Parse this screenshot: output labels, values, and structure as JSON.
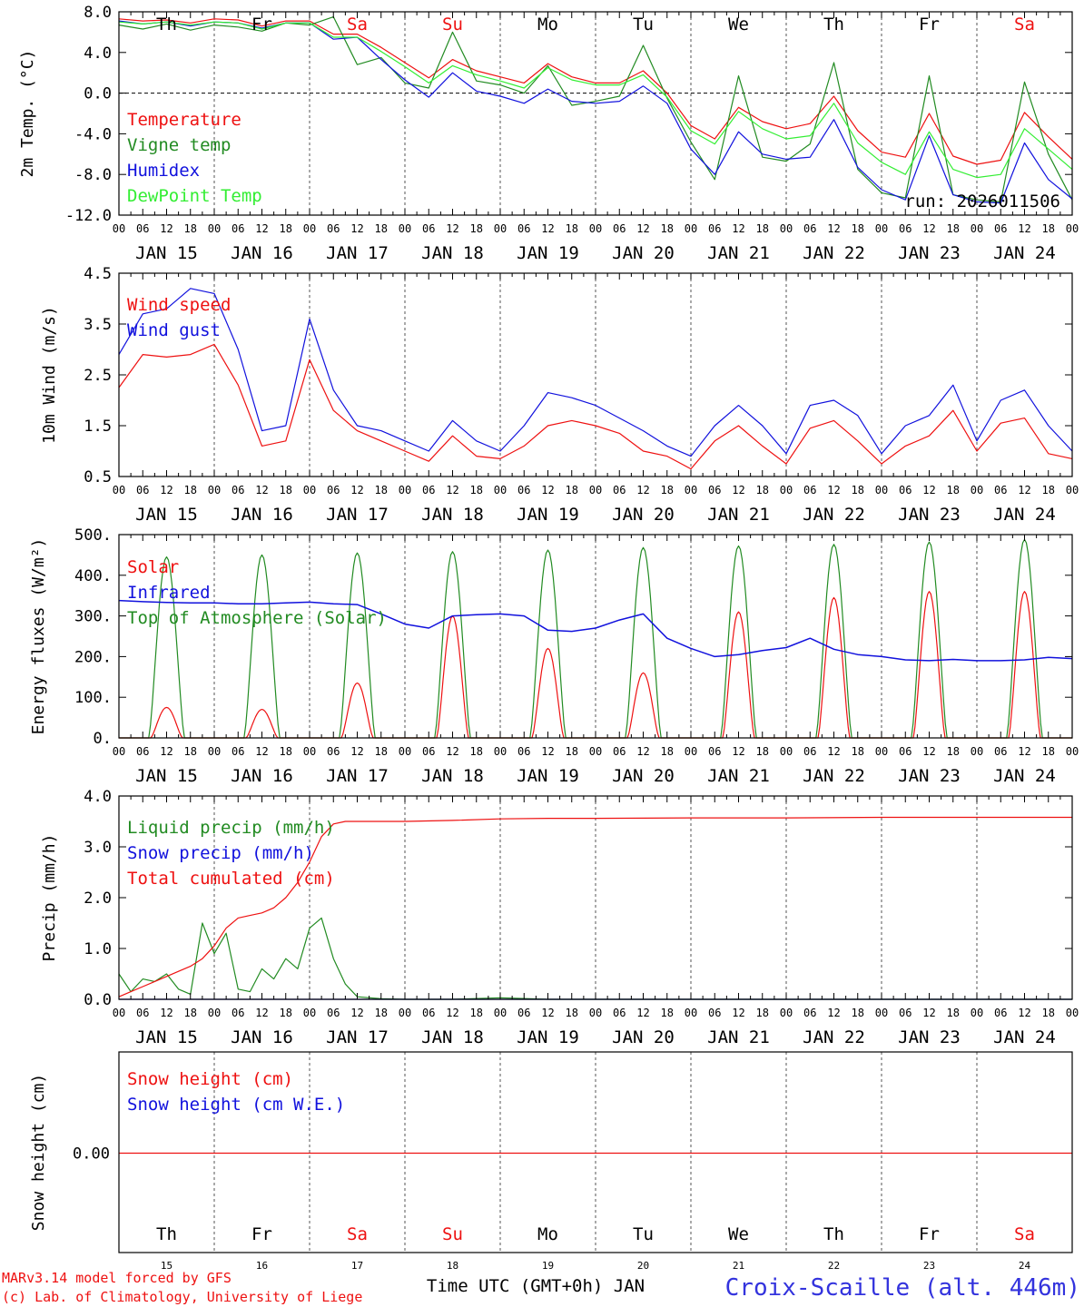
{
  "days": [
    {
      "abbr": "Th",
      "date": "JAN 15",
      "num": "15",
      "weekend": false
    },
    {
      "abbr": "Fr",
      "date": "JAN 16",
      "num": "16",
      "weekend": false
    },
    {
      "abbr": "Sa",
      "date": "JAN 17",
      "num": "17",
      "weekend": true
    },
    {
      "abbr": "Su",
      "date": "JAN 18",
      "num": "18",
      "weekend": true
    },
    {
      "abbr": "Mo",
      "date": "JAN 19",
      "num": "19",
      "weekend": false
    },
    {
      "abbr": "Tu",
      "date": "JAN 20",
      "num": "20",
      "weekend": false
    },
    {
      "abbr": "We",
      "date": "JAN 21",
      "num": "21",
      "weekend": false
    },
    {
      "abbr": "Th",
      "date": "JAN 22",
      "num": "22",
      "weekend": false
    },
    {
      "abbr": "Fr",
      "date": "JAN 23",
      "num": "23",
      "weekend": false
    },
    {
      "abbr": "Sa",
      "date": "JAN 24",
      "num": "24",
      "weekend": true
    }
  ],
  "hour_labels": [
    "00",
    "06",
    "12",
    "18"
  ],
  "final_hour_label": "00",
  "colors": {
    "red": "#ee1111",
    "darkgreen": "#228b22",
    "blue": "#1111dd",
    "lightgreen": "#33ee33",
    "weekday": "#000000",
    "weekend": "#ee1111",
    "station": "#3333dd"
  },
  "run_label": "run: 2026011506",
  "footer": {
    "credit_line1": "MARv3.14 model forced by GFS",
    "credit_line2": "(c) Lab. of Climatology, University of Liege",
    "xlabel": "Time UTC (GMT+0h) JAN",
    "station": "Croix-Scaille (alt. 446m)"
  },
  "chart_data": [
    {
      "type": "line",
      "ylabel": "2m Temp. (°C)",
      "ylim": [
        -12,
        8
      ],
      "yticks": [
        "8.0",
        "4.0",
        "0.0",
        "-4.0",
        "-8.0",
        "-12.0"
      ],
      "x_hours": [
        0,
        6,
        12,
        18,
        24,
        30,
        36,
        42,
        48,
        54,
        60,
        66,
        72,
        78,
        84,
        90,
        96,
        102,
        108,
        114,
        120,
        126,
        132,
        138,
        144,
        150,
        156,
        162,
        168,
        174,
        180,
        186,
        192,
        198,
        204,
        210,
        216,
        222,
        228,
        234,
        240
      ],
      "series": [
        {
          "name": "Temperature",
          "color": "red",
          "values": [
            7.3,
            7.1,
            7.2,
            6.9,
            7.3,
            7.2,
            6.6,
            7.1,
            7.1,
            5.8,
            5.8,
            4.5,
            3.0,
            1.5,
            3.3,
            2.2,
            1.6,
            1.0,
            2.9,
            1.6,
            1.0,
            1.0,
            2.2,
            0.0,
            -3.2,
            -4.5,
            -1.4,
            -2.8,
            -3.5,
            -3.0,
            -0.3,
            -3.7,
            -5.8,
            -6.3,
            -2.0,
            -6.2,
            -7.0,
            -6.6,
            -1.9,
            -4.3,
            -6.5
          ]
        },
        {
          "name": "Vigne temp",
          "color": "darkgreen",
          "values": [
            6.7,
            6.3,
            6.8,
            6.2,
            6.7,
            6.5,
            6.1,
            6.9,
            6.7,
            7.5,
            2.8,
            3.5,
            1.0,
            0.5,
            6.0,
            1.2,
            0.8,
            0.0,
            2.7,
            -1.2,
            -0.8,
            -0.3,
            4.7,
            -0.5,
            -4.8,
            -8.5,
            1.7,
            -6.3,
            -6.7,
            -5.0,
            3.0,
            -7.5,
            -9.8,
            -10.3,
            1.7,
            -10.0,
            -10.5,
            -10.7,
            1.1,
            -6.0,
            -10.5
          ]
        },
        {
          "name": "Humidex",
          "color": "blue",
          "values": [
            7.1,
            6.8,
            7.0,
            6.6,
            7.0,
            6.9,
            6.4,
            6.9,
            6.9,
            5.3,
            5.5,
            3.3,
            1.3,
            -0.4,
            2.0,
            0.2,
            -0.3,
            -1.0,
            0.4,
            -0.8,
            -1.0,
            -0.8,
            0.7,
            -1.0,
            -5.5,
            -8.0,
            -3.8,
            -6.0,
            -6.5,
            -6.3,
            -2.6,
            -7.3,
            -9.5,
            -10.5,
            -4.2,
            -10.0,
            -10.7,
            -10.8,
            -4.9,
            -8.5,
            -10.4
          ]
        },
        {
          "name": "DewPoint Temp",
          "color": "lightgreen",
          "values": [
            7.0,
            6.8,
            7.0,
            6.7,
            7.0,
            6.9,
            6.3,
            6.9,
            6.9,
            5.5,
            5.5,
            4.1,
            2.6,
            1.0,
            2.7,
            1.8,
            1.2,
            0.5,
            2.5,
            1.3,
            0.8,
            0.8,
            1.8,
            -0.4,
            -3.7,
            -5.0,
            -1.8,
            -3.5,
            -4.5,
            -4.2,
            -1.0,
            -4.9,
            -6.8,
            -8.0,
            -3.8,
            -7.5,
            -8.3,
            -8.0,
            -3.5,
            -5.5,
            -7.5
          ]
        }
      ]
    },
    {
      "type": "line",
      "ylabel": "10m Wind (m/s)",
      "ylim": [
        0.5,
        4.5
      ],
      "yticks": [
        "4.5",
        "3.5",
        "2.5",
        "1.5",
        "0.5"
      ],
      "x_hours": [
        0,
        6,
        12,
        18,
        24,
        30,
        36,
        42,
        48,
        54,
        60,
        66,
        72,
        78,
        84,
        90,
        96,
        102,
        108,
        114,
        120,
        126,
        132,
        138,
        144,
        150,
        156,
        162,
        168,
        174,
        180,
        186,
        192,
        198,
        204,
        210,
        216,
        222,
        228,
        234,
        240
      ],
      "series": [
        {
          "name": "Wind speed",
          "color": "red",
          "values": [
            2.25,
            2.9,
            2.85,
            2.9,
            3.1,
            2.3,
            1.1,
            1.2,
            2.8,
            1.8,
            1.4,
            1.2,
            1.0,
            0.8,
            1.3,
            0.9,
            0.85,
            1.1,
            1.5,
            1.6,
            1.5,
            1.35,
            1.0,
            0.9,
            0.65,
            1.2,
            1.5,
            1.1,
            0.75,
            1.45,
            1.6,
            1.2,
            0.75,
            1.1,
            1.3,
            1.8,
            1.0,
            1.55,
            1.65,
            0.95,
            0.85
          ]
        },
        {
          "name": "Wind gust",
          "color": "blue",
          "values": [
            2.9,
            3.7,
            3.8,
            4.2,
            4.1,
            3.0,
            1.4,
            1.5,
            3.6,
            2.2,
            1.5,
            1.4,
            1.2,
            1.0,
            1.6,
            1.2,
            1.0,
            1.5,
            2.15,
            2.05,
            1.9,
            1.65,
            1.4,
            1.1,
            0.9,
            1.5,
            1.9,
            1.5,
            0.95,
            1.9,
            2.0,
            1.7,
            0.95,
            1.5,
            1.7,
            2.3,
            1.2,
            2.0,
            2.2,
            1.5,
            1.0
          ]
        }
      ]
    },
    {
      "type": "line",
      "ylabel": "Energy fluxes (W/m²)",
      "ylim": [
        0,
        500
      ],
      "yticks": [
        "500.",
        "400.",
        "300.",
        "200.",
        "100.",
        "0."
      ],
      "series": [
        {
          "name": "Solar",
          "color": "red",
          "peaks": [
            75,
            70,
            135,
            300,
            220,
            160,
            310,
            345,
            360,
            360
          ]
        },
        {
          "name": "Infrared",
          "color": "blue",
          "x_hours": [
            0,
            6,
            12,
            18,
            24,
            30,
            36,
            42,
            48,
            54,
            60,
            66,
            72,
            78,
            84,
            90,
            96,
            102,
            108,
            114,
            120,
            126,
            132,
            138,
            144,
            150,
            156,
            162,
            168,
            174,
            180,
            186,
            192,
            198,
            204,
            210,
            216,
            222,
            228,
            234,
            240
          ],
          "values": [
            338,
            335,
            333,
            332,
            332,
            330,
            330,
            332,
            334,
            330,
            328,
            305,
            280,
            270,
            300,
            303,
            305,
            300,
            265,
            262,
            270,
            290,
            305,
            245,
            220,
            200,
            205,
            215,
            222,
            245,
            218,
            205,
            200,
            192,
            190,
            193,
            190,
            190,
            192,
            198,
            195
          ]
        },
        {
          "name": "Top of Atmosphere (Solar)",
          "color": "darkgreen",
          "peaks": [
            445,
            450,
            455,
            458,
            462,
            468,
            472,
            476,
            482,
            488
          ]
        }
      ]
    },
    {
      "type": "line",
      "ylabel": "Precip (mm/h)",
      "ylim": [
        0,
        4
      ],
      "yticks": [
        "4.0",
        "3.0",
        "2.0",
        "1.0",
        "0.0"
      ],
      "x_hours": [
        0,
        3,
        6,
        9,
        12,
        15,
        18,
        21,
        24,
        27,
        30,
        33,
        36,
        39,
        42,
        45,
        48,
        51,
        54,
        57,
        60,
        66,
        72,
        84,
        96,
        108,
        120,
        144,
        168,
        192,
        216,
        240
      ],
      "series": [
        {
          "name": "Liquid precip (mm/h)",
          "color": "darkgreen",
          "values": [
            0.5,
            0.15,
            0.4,
            0.35,
            0.5,
            0.2,
            0.1,
            1.5,
            0.9,
            1.3,
            0.2,
            0.15,
            0.6,
            0.4,
            0.8,
            0.6,
            1.4,
            1.6,
            0.8,
            0.3,
            0.05,
            0.01,
            0.0,
            0.0,
            0.03,
            0.0,
            0.0,
            0.0,
            0.0,
            0.0,
            0.0,
            0.0
          ]
        },
        {
          "name": "Snow precip (mm/h)",
          "color": "blue",
          "values": [
            0,
            0,
            0,
            0,
            0,
            0,
            0,
            0,
            0,
            0,
            0,
            0,
            0,
            0,
            0,
            0,
            0,
            0,
            0,
            0,
            0,
            0,
            0,
            0,
            0,
            0,
            0,
            0,
            0,
            0,
            0,
            0
          ]
        },
        {
          "name": "Total cumulated (cm)",
          "color": "red",
          "values": [
            0.05,
            0.15,
            0.25,
            0.35,
            0.45,
            0.55,
            0.65,
            0.8,
            1.05,
            1.4,
            1.6,
            1.65,
            1.7,
            1.8,
            2.0,
            2.3,
            2.7,
            3.2,
            3.45,
            3.5,
            3.5,
            3.5,
            3.5,
            3.52,
            3.55,
            3.56,
            3.56,
            3.57,
            3.57,
            3.58,
            3.58,
            3.58
          ]
        }
      ]
    },
    {
      "type": "line",
      "ylabel": "Snow height (cm)",
      "yticks": [
        "0.00"
      ],
      "series": [
        {
          "name": "Snow height (cm)",
          "color": "red",
          "values": [
            0,
            0
          ]
        },
        {
          "name": "Snow height (cm W.E.)",
          "color": "blue",
          "values": [
            0,
            0
          ]
        }
      ]
    }
  ]
}
